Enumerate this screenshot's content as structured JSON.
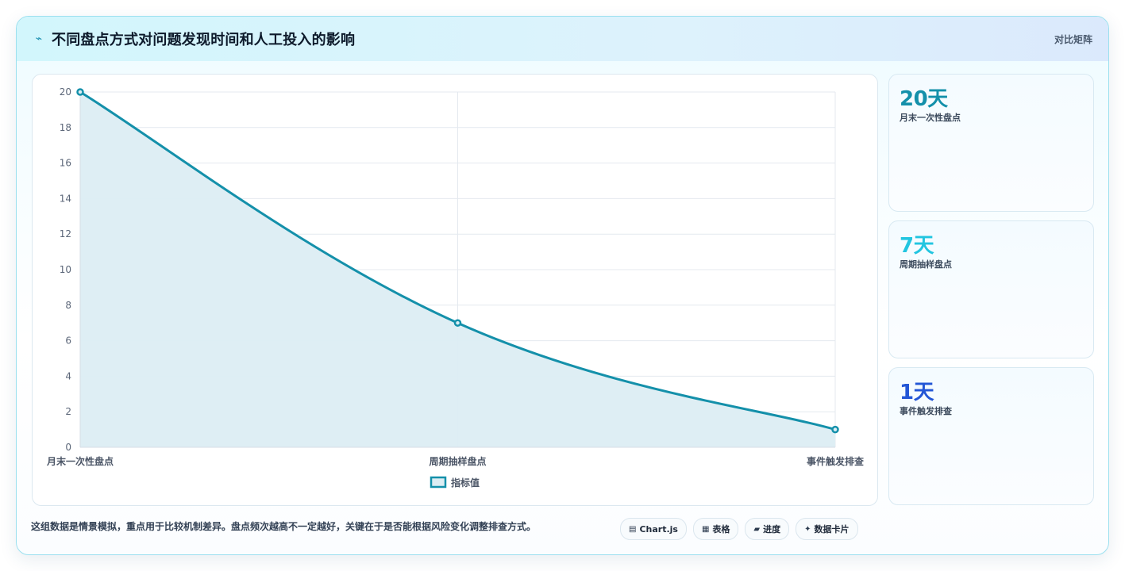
{
  "header": {
    "icon": "lightning-icon",
    "title": "不同盘点方式对问题发现时间和人工投入的影响",
    "tag": "对比矩阵"
  },
  "chart_data": {
    "type": "area",
    "categories": [
      "月末一次性盘点",
      "周期抽样盘点",
      "事件触发排查"
    ],
    "series": [
      {
        "name": "指标值",
        "values": [
          20,
          7,
          1
        ],
        "color": "#1490aa",
        "fill": "#dcedf3"
      }
    ],
    "ylim": [
      0,
      20
    ],
    "yticks": [
      0,
      2,
      4,
      6,
      8,
      10,
      12,
      14,
      16,
      18,
      20
    ],
    "grid": true,
    "legend": "bottom"
  },
  "stats": [
    {
      "value": "20天",
      "label": "月末一次性盘点",
      "color": "#1490aa"
    },
    {
      "value": "7天",
      "label": "周期抽样盘点",
      "color": "#22c5e0"
    },
    {
      "value": "1天",
      "label": "事件触发排查",
      "color": "#2356d6"
    }
  ],
  "note": "这组数据是情景模拟，重点用于比较机制差异。盘点频次越高不一定越好，关键在于是否能根据风险变化调整排查方式。",
  "chips": [
    {
      "icon": "chart-icon",
      "glyph": "▤",
      "label": "Chart.js"
    },
    {
      "icon": "table-icon",
      "glyph": "▦",
      "label": "表格"
    },
    {
      "icon": "progress-icon",
      "glyph": "▰",
      "label": "进度"
    },
    {
      "icon": "card-icon",
      "glyph": "✦",
      "label": "数据卡片"
    }
  ]
}
